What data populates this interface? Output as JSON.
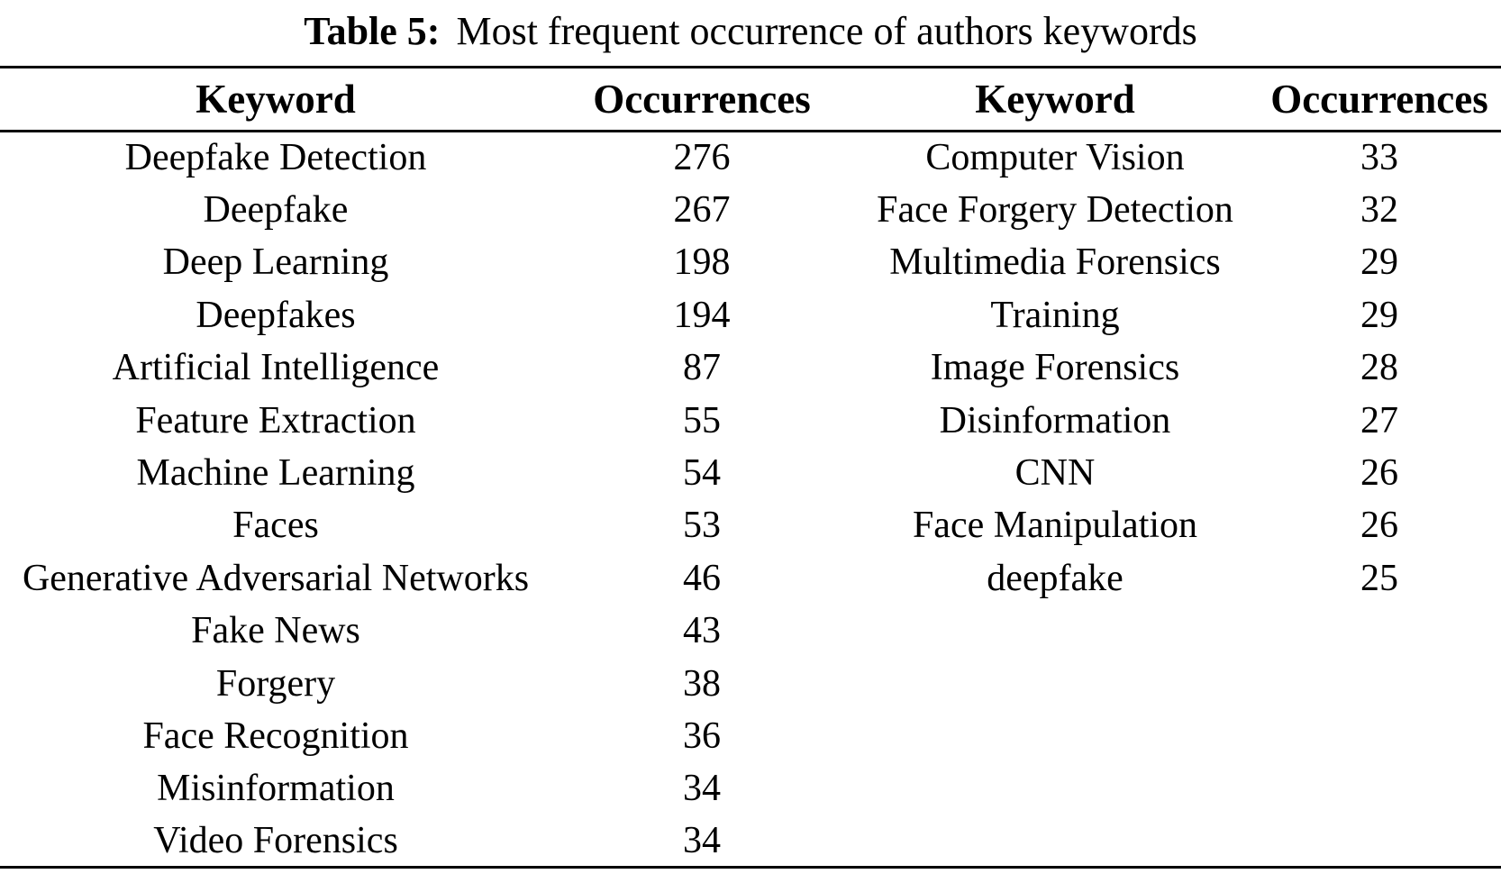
{
  "caption": {
    "label": "Table 5:",
    "text": "Most frequent occurrence of authors keywords"
  },
  "table": {
    "headers": [
      "Keyword",
      "Occurrences",
      "Keyword",
      "Occurrences"
    ],
    "rows": [
      [
        "Deepfake Detection",
        "276",
        "Computer Vision",
        "33"
      ],
      [
        "Deepfake",
        "267",
        "Face Forgery Detection",
        "32"
      ],
      [
        "Deep Learning",
        "198",
        "Multimedia Forensics",
        "29"
      ],
      [
        "Deepfakes",
        "194",
        "Training",
        "29"
      ],
      [
        "Artificial Intelligence",
        "87",
        "Image Forensics",
        "28"
      ],
      [
        "Feature Extraction",
        "55",
        "Disinformation",
        "27"
      ],
      [
        "Machine Learning",
        "54",
        "CNN",
        "26"
      ],
      [
        "Faces",
        "53",
        "Face Manipulation",
        "26"
      ],
      [
        "Generative Adversarial Networks",
        "46",
        "deepfake",
        "25"
      ],
      [
        "Fake News",
        "43",
        "",
        ""
      ],
      [
        "Forgery",
        "38",
        "",
        ""
      ],
      [
        "Face Recognition",
        "36",
        "",
        ""
      ],
      [
        "Misinformation",
        "34",
        "",
        ""
      ],
      [
        "Video Forensics",
        "34",
        "",
        ""
      ]
    ]
  },
  "colors": {
    "text": "#000000",
    "background": "#ffffff",
    "rule": "#000000"
  }
}
